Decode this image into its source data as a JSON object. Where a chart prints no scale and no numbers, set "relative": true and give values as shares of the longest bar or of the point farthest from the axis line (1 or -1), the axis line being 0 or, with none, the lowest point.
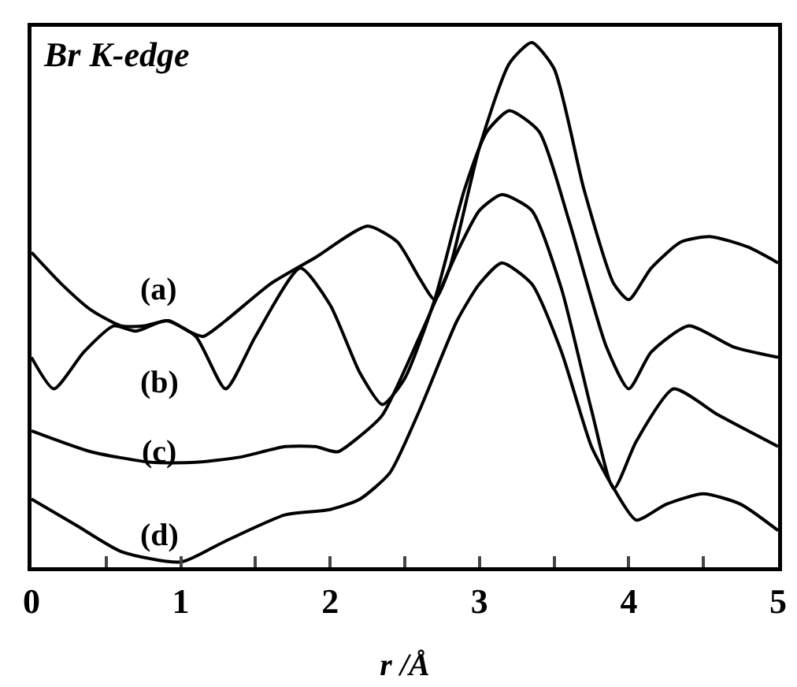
{
  "chart_data": {
    "type": "line",
    "title": "Br K-edge",
    "xlabel": "r /Å",
    "relative": true,
    "xlim": [
      0,
      5
    ],
    "xticks": [
      0,
      {
        "value": 0.5,
        "label": null
      },
      1,
      {
        "value": 1.5,
        "label": null
      },
      2,
      {
        "value": 2.5,
        "label": null
      },
      3,
      {
        "value": 3.5,
        "label": null
      },
      4,
      {
        "value": 4.5,
        "label": null
      },
      5
    ],
    "grid": false,
    "legend": false,
    "marker": "none",
    "line_style": "solid",
    "series": [
      {
        "name": "(a)",
        "color": "#000000",
        "x": [
          0,
          0.2,
          0.4,
          0.6,
          0.75,
          0.92,
          1.05,
          1.15,
          1.3,
          1.6,
          1.9,
          2.25,
          2.45,
          2.6,
          2.7,
          2.8,
          3.0,
          3.2,
          3.35,
          3.5,
          3.7,
          3.9,
          4.0,
          4.15,
          4.35,
          4.55,
          4.8,
          5.0
        ],
        "values": [
          0.6,
          0.54,
          0.49,
          0.46,
          0.46,
          0.47,
          0.45,
          0.44,
          0.47,
          0.54,
          0.59,
          0.65,
          0.62,
          0.55,
          0.51,
          0.57,
          0.8,
          0.96,
          1.0,
          0.95,
          0.72,
          0.54,
          0.51,
          0.57,
          0.62,
          0.63,
          0.61,
          0.58
        ]
      },
      {
        "name": "(b)",
        "color": "#000000",
        "x": [
          0,
          0.15,
          0.35,
          0.55,
          0.7,
          0.9,
          1.1,
          1.3,
          1.5,
          1.8,
          2.0,
          2.2,
          2.35,
          2.5,
          2.7,
          2.9,
          3.05,
          3.2,
          3.4,
          3.6,
          3.85,
          4.0,
          4.15,
          4.4,
          4.7,
          5.0
        ],
        "values": [
          0.4,
          0.34,
          0.41,
          0.46,
          0.45,
          0.47,
          0.44,
          0.34,
          0.44,
          0.57,
          0.5,
          0.37,
          0.31,
          0.36,
          0.51,
          0.72,
          0.83,
          0.87,
          0.83,
          0.66,
          0.42,
          0.34,
          0.41,
          0.46,
          0.42,
          0.4
        ]
      },
      {
        "name": "(c)",
        "color": "#000000",
        "x": [
          0,
          0.4,
          0.8,
          1.1,
          1.4,
          1.7,
          1.9,
          2.05,
          2.2,
          2.35,
          2.6,
          2.85,
          3.0,
          3.15,
          3.35,
          3.55,
          3.75,
          3.9,
          4.05,
          4.3,
          4.6,
          5.0
        ],
        "values": [
          0.26,
          0.22,
          0.2,
          0.2,
          0.21,
          0.23,
          0.23,
          0.22,
          0.25,
          0.29,
          0.44,
          0.6,
          0.68,
          0.71,
          0.68,
          0.53,
          0.3,
          0.15,
          0.24,
          0.34,
          0.29,
          0.23
        ]
      },
      {
        "name": "(d)",
        "color": "#000000",
        "x": [
          0,
          0.3,
          0.6,
          1.0,
          1.3,
          1.7,
          2.0,
          2.2,
          2.4,
          2.6,
          2.85,
          3.0,
          3.15,
          3.35,
          3.55,
          3.75,
          3.9,
          4.05,
          4.25,
          4.5,
          4.75,
          5.0
        ],
        "values": [
          0.13,
          0.08,
          0.03,
          0.01,
          0.05,
          0.1,
          0.11,
          0.13,
          0.18,
          0.3,
          0.47,
          0.54,
          0.58,
          0.54,
          0.41,
          0.23,
          0.15,
          0.09,
          0.12,
          0.14,
          0.12,
          0.07
        ]
      }
    ]
  }
}
